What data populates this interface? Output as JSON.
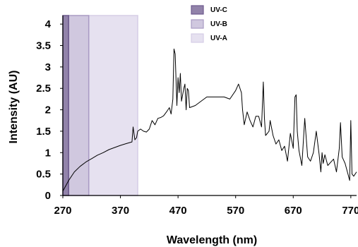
{
  "chart_data": {
    "type": "line",
    "title": "",
    "xlabel": "Wavelength (nm)",
    "ylabel": "Intensity (AU)",
    "xlim": [
      270,
      780
    ],
    "ylim": [
      0,
      4.2
    ],
    "x_ticks": [
      270,
      370,
      470,
      570,
      670,
      770
    ],
    "y_ticks": [
      0,
      0.5,
      1,
      1.5,
      2,
      2.5,
      3,
      3.5,
      4
    ],
    "x_tick_labels": [
      "270",
      "370",
      "470",
      "570",
      "670",
      "770"
    ],
    "y_tick_labels": [
      "0",
      "0.5",
      "1",
      "1.5",
      "2",
      "2.5",
      "3",
      "3.5",
      "4"
    ],
    "grid": false,
    "legend_position": "top-center",
    "bands": [
      {
        "name": "UV-C",
        "x_start": 270,
        "x_end": 280,
        "color": "#6d5a8e",
        "opacity": 0.75
      },
      {
        "name": "UV-B",
        "x_start": 280,
        "x_end": 315,
        "color": "#a99bc4",
        "opacity": 0.55
      },
      {
        "name": "UV-A",
        "x_start": 315,
        "x_end": 400,
        "color": "#d6cde6",
        "opacity": 0.6
      }
    ],
    "series": [
      {
        "color": "#000000",
        "x": [
          270,
          280,
          290,
          300,
          310,
          320,
          330,
          340,
          350,
          360,
          370,
          380,
          390,
          392,
          395,
          398,
          400,
          405,
          410,
          415,
          420,
          425,
          430,
          435,
          440,
          445,
          450,
          455,
          458,
          461,
          463,
          465,
          468,
          470,
          472,
          474,
          476,
          480,
          482,
          484,
          486,
          488,
          490,
          500,
          510,
          520,
          530,
          540,
          550,
          560,
          570,
          575,
          580,
          582,
          585,
          590,
          595,
          600,
          605,
          610,
          615,
          618,
          620,
          622,
          625,
          628,
          630,
          635,
          640,
          645,
          650,
          655,
          660,
          665,
          670,
          673,
          675,
          677,
          680,
          685,
          690,
          695,
          700,
          705,
          710,
          715,
          718,
          720,
          722,
          725,
          730,
          740,
          745,
          750,
          752,
          755,
          760,
          765,
          768,
          770,
          772,
          775,
          780
        ],
        "y": [
          0.1,
          0.35,
          0.55,
          0.68,
          0.78,
          0.86,
          0.94,
          1.0,
          1.07,
          1.12,
          1.17,
          1.21,
          1.25,
          1.6,
          1.3,
          1.35,
          1.5,
          1.55,
          1.5,
          1.48,
          1.55,
          1.75,
          1.65,
          1.8,
          1.82,
          1.86,
          1.95,
          2.05,
          1.9,
          2.25,
          3.42,
          3.3,
          2.1,
          2.75,
          2.4,
          2.85,
          2.2,
          2.5,
          2.6,
          2.0,
          2.5,
          2.45,
          2.05,
          2.1,
          2.2,
          2.3,
          2.3,
          2.3,
          2.3,
          2.25,
          2.45,
          2.6,
          2.4,
          2.0,
          1.65,
          1.95,
          1.75,
          1.6,
          1.85,
          1.85,
          1.6,
          2.65,
          1.8,
          1.4,
          1.45,
          1.5,
          1.75,
          1.4,
          1.2,
          1.3,
          1.05,
          1.15,
          0.8,
          1.45,
          1.1,
          2.3,
          2.35,
          1.5,
          1.05,
          0.7,
          1.8,
          0.9,
          0.8,
          1.0,
          1.5,
          0.95,
          0.55,
          1.0,
          0.75,
          0.95,
          0.7,
          0.85,
          0.55,
          1.1,
          1.7,
          0.9,
          0.75,
          0.5,
          0.35,
          1.75,
          0.5,
          0.45,
          0.55
        ]
      }
    ]
  }
}
